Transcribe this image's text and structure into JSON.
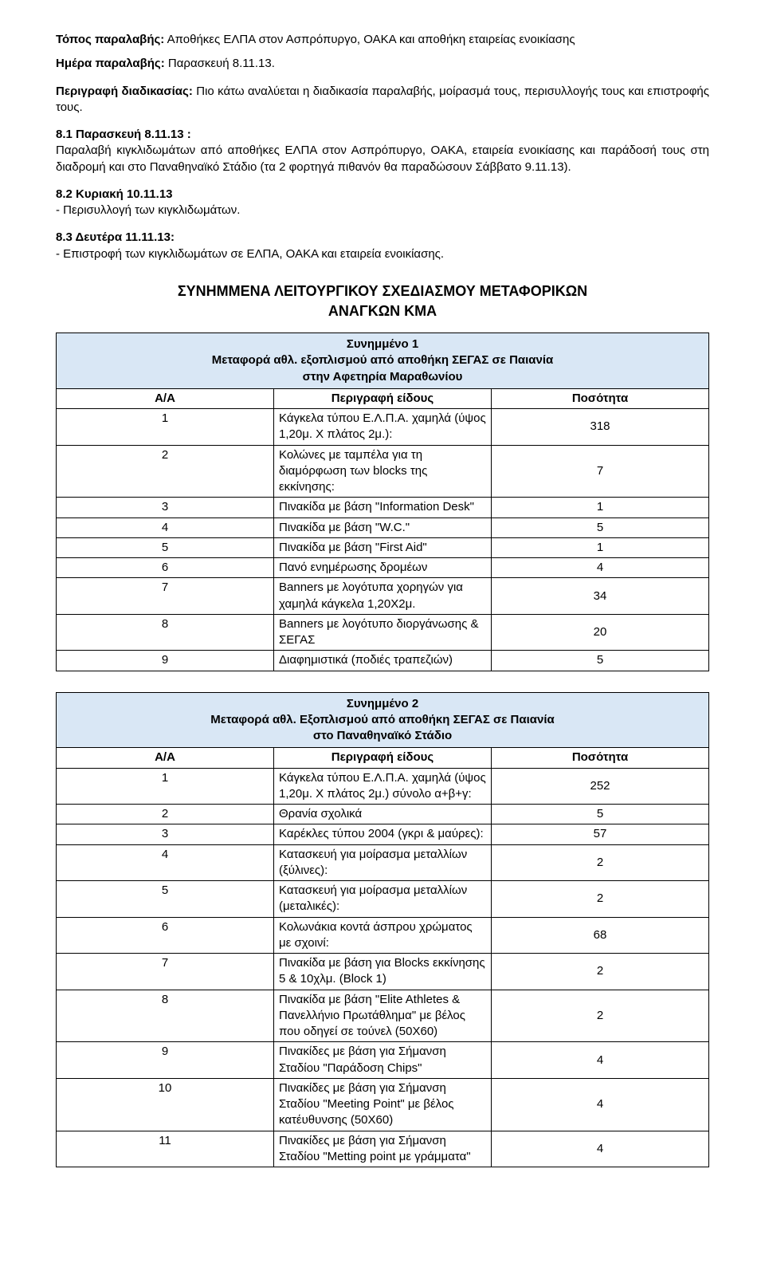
{
  "colors": {
    "table_header_bg": "#d9e7f5",
    "border": "#000000",
    "text": "#000000",
    "bg": "#ffffff"
  },
  "intro": {
    "rcpt_place_label": "Τόπος παραλαβής:",
    "rcpt_place_text": " Αποθήκες ΕΛΠΑ στον Ασπρόπυργο, ΟΑΚΑ και αποθήκη εταιρείας ενοικίασης",
    "rcpt_day_label": "Ημέρα παραλαβής:",
    "rcpt_day_text": " Παρασκευή 8.11.13.",
    "proc_label": "Περιγραφή διαδικασίας:",
    "proc_text": " Πιο κάτω αναλύεται η διαδικασία παραλαβής, μοίρασμά τους, περισυλλογής τους και επιστροφής τους.",
    "s81_heading": "8.1 Παρασκευή 8.11.13 :",
    "s81_body": "Παραλαβή κιγκλιδωμάτων από αποθήκες ΕΛΠΑ στον Ασπρόπυργο, ΟΑΚΑ, εταιρεία ενοικίασης και παράδοσή τους στη διαδρομή και στο Παναθηναϊκό Στάδιο (τα 2 φορτηγά πιθανόν θα παραδώσουν Σάββατο 9.11.13).",
    "s82_heading": "8.2 Κυριακή 10.11.13",
    "s82_body": "- Περισυλλογή των κιγκλιδωμάτων.",
    "s83_heading": "8.3 Δευτέρα 11.11.13:",
    "s83_body": "- Επιστροφή των κιγκλιδωμάτων σε ΕΛΠΑ, ΟΑΚΑ και εταιρεία ενοικίασης."
  },
  "section_title_line1": "ΣΥΝΗΜΜΕΝΑ ΛΕΙΤΟΥΡΓΙΚΟΥ ΣΧΕΔΙΑΣΜΟΥ ΜΕΤΑΦΟΡΙΚΩΝ",
  "section_title_line2": "ΑΝΑΓΚΩΝ ΚΜΑ",
  "columns": {
    "aa": "Α/Α",
    "desc": "Περιγραφή είδους",
    "qty": "Ποσότητα"
  },
  "table1": {
    "band_line1": "Συνημμένο 1",
    "band_line2": "Μεταφορά αθλ. εξοπλισμού από αποθήκη ΣΕΓΑΣ σε Παιανία",
    "band_line3": "στην Αφετηρία Μαραθωνίου",
    "rows": [
      {
        "n": "1",
        "d": "Κάγκελα τύπου Ε.Λ.Π.Α. χαμηλά (ύψος 1,20μ. Χ πλάτος 2μ.):",
        "q": "318"
      },
      {
        "n": "2",
        "d": "Κολώνες με ταμπέλα για τη διαμόρφωση των blocks της εκκίνησης:",
        "q": "7"
      },
      {
        "n": "3",
        "d": "Πινακίδα με βάση \"Information Desk\"",
        "q": "1"
      },
      {
        "n": "4",
        "d": "Πινακίδα με βάση \"W.C.\"",
        "q": "5"
      },
      {
        "n": "5",
        "d": "Πινακίδα με βάση \"First Aid\"",
        "q": "1"
      },
      {
        "n": "6",
        "d": "Πανό ενημέρωσης δρομέων",
        "q": "4"
      },
      {
        "n": "7",
        "d": "Banners με λογότυπα χορηγών για χαμηλά κάγκελα 1,20Χ2μ.",
        "q": "34"
      },
      {
        "n": "8",
        "d": "Banners με λογότυπο διοργάνωσης & ΣΕΓΑΣ",
        "q": "20"
      },
      {
        "n": "9",
        "d": "Διαφημιστικά (ποδιές τραπεζιών)",
        "q": "5"
      }
    ]
  },
  "table2": {
    "band_line1": "Συνημμένο 2",
    "band_line2": "Μεταφορά αθλ. Εξοπλισμού από αποθήκη ΣΕΓΑΣ σε Παιανία",
    "band_line3": "στο Παναθηναϊκό Στάδιο",
    "rows": [
      {
        "n": "1",
        "d": "Κάγκελα τύπου Ε.Λ.Π.Α. χαμηλά (ύψος 1,20μ. Χ πλάτος 2μ.) σύνολο α+β+γ:",
        "q": "252"
      },
      {
        "n": "2",
        "d": "Θρανία σχολικά",
        "q": "5"
      },
      {
        "n": "3",
        "d": "Καρέκλες τύπου 2004 (γκρι & μαύρες):",
        "q": "57"
      },
      {
        "n": "4",
        "d": "Κατασκευή για μοίρασμα μεταλλίων (ξύλινες):",
        "q": "2"
      },
      {
        "n": "5",
        "d": "Κατασκευή για μοίρασμα μεταλλίων (μεταλικές):",
        "q": "2"
      },
      {
        "n": "6",
        "d": "Κολωνάκια κοντά άσπρου χρώματος με σχοινί:",
        "q": "68"
      },
      {
        "n": "7",
        "d": "Πινακίδα με βάση για Blocks εκκίνησης 5 & 10χλμ. (Block 1)",
        "q": "2"
      },
      {
        "n": "8",
        "d": "Πινακίδα με βάση \"Elite Athletes & Πανελλήνιο Πρωτάθλημα\" με βέλος που οδηγεί σε τούνελ (50Χ60)",
        "q": "2"
      },
      {
        "n": "9",
        "d": "Πινακίδες με βάση για Σήμανση Σταδίου  \"Παράδοση Chips\"",
        "q": "4"
      },
      {
        "n": "10",
        "d": "Πινακίδες με βάση για Σήμανση Σταδίου \"Meeting Point\" με βέλος κατέυθυνσης (50Χ60)",
        "q": "4"
      },
      {
        "n": "11",
        "d": "Πινακίδες με βάση για Σήμανση Σταδίου \"Metting point με γράμματα\"",
        "q": "4"
      }
    ]
  }
}
